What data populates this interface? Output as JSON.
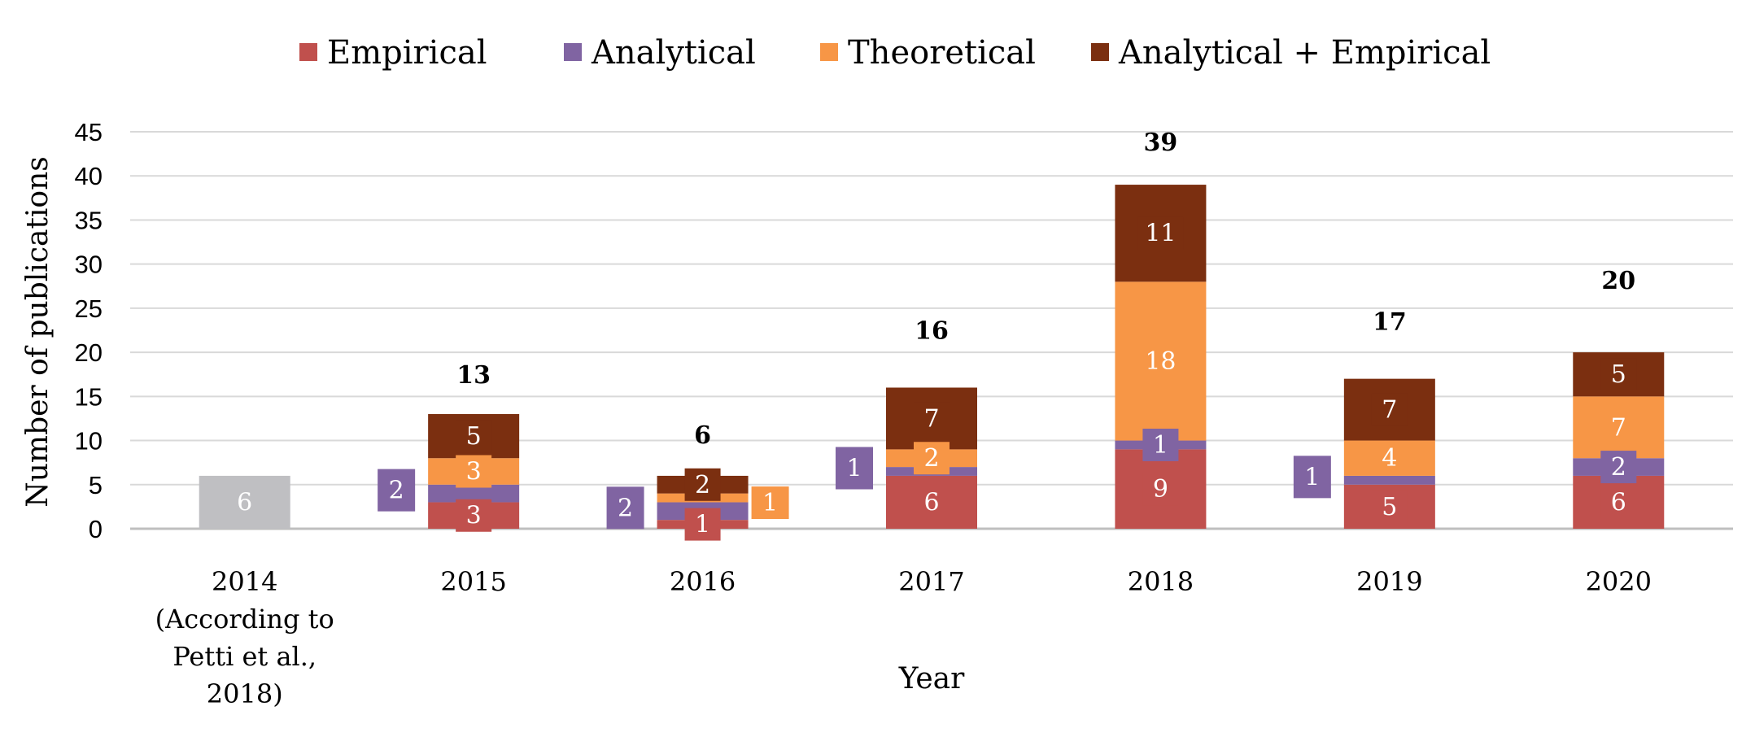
{
  "chart_data": {
    "type": "bar",
    "stacked": true,
    "title": "",
    "xlabel": "Year",
    "ylabel": "Number of publications",
    "ylim": [
      0,
      45
    ],
    "yticks": [
      0,
      5,
      10,
      15,
      20,
      25,
      30,
      35,
      40,
      45
    ],
    "grid": true,
    "legend_position": "top",
    "categories": [
      [
        "2014",
        "(According to",
        "Petti et al.,",
        "2018)"
      ],
      [
        "2015"
      ],
      [
        "2016"
      ],
      [
        "2017"
      ],
      [
        "2018"
      ],
      [
        "2019"
      ],
      [
        "2020"
      ]
    ],
    "series": [
      {
        "name": "Empirical",
        "color": "#c0504d",
        "values": [
          0,
          3,
          1,
          6,
          9,
          5,
          6
        ]
      },
      {
        "name": "Analytical",
        "color": "#8064a2",
        "values": [
          0,
          2,
          2,
          1,
          1,
          1,
          2
        ]
      },
      {
        "name": "Theoretical",
        "color": "#f79646",
        "values": [
          0,
          3,
          1,
          2,
          18,
          4,
          7
        ]
      },
      {
        "name": "Analytical + Empirical",
        "color": "#7b2f10",
        "values": [
          0,
          5,
          2,
          7,
          11,
          7,
          5
        ]
      }
    ],
    "prior_series": {
      "category_index": 0,
      "color": "#bfbfc2",
      "value": 6,
      "label": "6"
    },
    "segment_labels": [
      [
        "",
        "",
        "",
        ""
      ],
      [
        "3",
        "2",
        "3",
        "5"
      ],
      [
        "1",
        "2",
        "1",
        "2"
      ],
      [
        "6",
        "1",
        "2",
        "7"
      ],
      [
        "9",
        "1",
        "18",
        "11"
      ],
      [
        "5",
        "1",
        "4",
        "7"
      ],
      [
        "6",
        "2",
        "7",
        "5"
      ]
    ],
    "totals": [
      "",
      "13",
      "6",
      "16",
      "39",
      "17",
      "20"
    ],
    "styles": {
      "gridline": "#d9d9d9",
      "baseline": "#bfbfbf",
      "muted_text": "#8c8c8c",
      "label_fill": "#ffffff"
    }
  }
}
